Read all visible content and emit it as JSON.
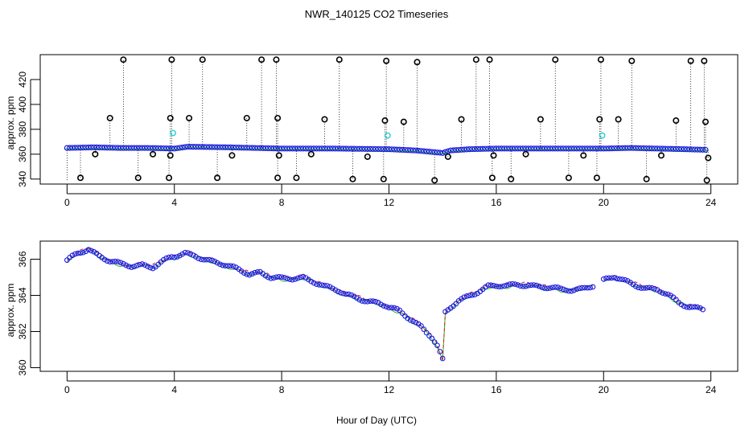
{
  "chart_data": [
    {
      "type": "scatter",
      "title": "NWR_140125  CO2 Timeseries",
      "xlabel": "",
      "ylabel": "approx. ppm",
      "xlim": [
        -1,
        25
      ],
      "ylim": [
        336,
        440
      ],
      "xticks": [
        "0",
        "4",
        "8",
        "12",
        "16",
        "20",
        "24"
      ],
      "yticks": [
        "340",
        "360",
        "380",
        "400",
        "420"
      ],
      "baseline": {
        "x": [
          0,
          1,
          2,
          3,
          4,
          4.5,
          6,
          8,
          10,
          12,
          13,
          13.5,
          14,
          14.3,
          15,
          16,
          18,
          20,
          21,
          22,
          23,
          23.8
        ],
        "y": [
          365,
          365.5,
          365,
          365,
          364.5,
          366,
          365.5,
          364.5,
          364.5,
          364,
          363,
          362,
          361,
          363,
          364,
          364.5,
          364.5,
          364.5,
          365,
          364.5,
          364,
          363.5
        ]
      },
      "outliers_high": [
        {
          "x": 1.6,
          "y": 389
        },
        {
          "x": 2.1,
          "y": 436
        },
        {
          "x": 3.85,
          "y": 389
        },
        {
          "x": 3.9,
          "y": 436
        },
        {
          "x": 4.55,
          "y": 389
        },
        {
          "x": 5.05,
          "y": 436
        },
        {
          "x": 6.7,
          "y": 389
        },
        {
          "x": 7.25,
          "y": 436
        },
        {
          "x": 7.8,
          "y": 436
        },
        {
          "x": 7.85,
          "y": 389
        },
        {
          "x": 9.6,
          "y": 388
        },
        {
          "x": 10.15,
          "y": 436
        },
        {
          "x": 11.85,
          "y": 387
        },
        {
          "x": 11.9,
          "y": 435
        },
        {
          "x": 12.55,
          "y": 386
        },
        {
          "x": 13.05,
          "y": 434
        },
        {
          "x": 14.7,
          "y": 388
        },
        {
          "x": 15.25,
          "y": 436
        },
        {
          "x": 15.75,
          "y": 436
        },
        {
          "x": 17.65,
          "y": 388
        },
        {
          "x": 18.2,
          "y": 436
        },
        {
          "x": 19.85,
          "y": 388
        },
        {
          "x": 19.9,
          "y": 436
        },
        {
          "x": 20.55,
          "y": 388
        },
        {
          "x": 21.05,
          "y": 435
        },
        {
          "x": 22.7,
          "y": 387
        },
        {
          "x": 23.25,
          "y": 435
        },
        {
          "x": 23.75,
          "y": 435
        },
        {
          "x": 23.8,
          "y": 386
        }
      ],
      "outliers_low": [
        {
          "x": 0.5,
          "y": 341
        },
        {
          "x": 1.05,
          "y": 360
        },
        {
          "x": 2.65,
          "y": 341
        },
        {
          "x": 3.2,
          "y": 360
        },
        {
          "x": 3.8,
          "y": 341
        },
        {
          "x": 3.85,
          "y": 359
        },
        {
          "x": 5.6,
          "y": 341
        },
        {
          "x": 6.15,
          "y": 359
        },
        {
          "x": 7.85,
          "y": 341
        },
        {
          "x": 7.9,
          "y": 359
        },
        {
          "x": 8.55,
          "y": 341
        },
        {
          "x": 9.1,
          "y": 360
        },
        {
          "x": 10.65,
          "y": 340
        },
        {
          "x": 11.2,
          "y": 358
        },
        {
          "x": 11.8,
          "y": 340
        },
        {
          "x": 13.7,
          "y": 339
        },
        {
          "x": 14.2,
          "y": 358
        },
        {
          "x": 15.85,
          "y": 341
        },
        {
          "x": 15.9,
          "y": 359
        },
        {
          "x": 16.55,
          "y": 340
        },
        {
          "x": 17.1,
          "y": 360
        },
        {
          "x": 18.7,
          "y": 341
        },
        {
          "x": 19.25,
          "y": 359
        },
        {
          "x": 19.75,
          "y": 341
        },
        {
          "x": 21.6,
          "y": 340
        },
        {
          "x": 22.15,
          "y": 359
        },
        {
          "x": 23.85,
          "y": 339
        },
        {
          "x": 23.9,
          "y": 357
        }
      ],
      "cyan_points": [
        {
          "x": 3.95,
          "y": 377
        },
        {
          "x": 11.95,
          "y": 375
        },
        {
          "x": 19.95,
          "y": 375
        }
      ]
    },
    {
      "type": "scatter",
      "title": "",
      "xlabel": "Hour of Day (UTC)",
      "ylabel": "approx. ppm",
      "xlim": [
        -1,
        25
      ],
      "ylim": [
        359.8,
        367
      ],
      "xticks": [
        "0",
        "4",
        "8",
        "12",
        "16",
        "20",
        "24"
      ],
      "yticks": [
        "360",
        "362",
        "364",
        "366"
      ],
      "gap_x": 19.75,
      "series": {
        "x": [
          0,
          0.4,
          0.8,
          1.2,
          1.6,
          2.0,
          2.4,
          2.8,
          3.2,
          3.6,
          3.9,
          4.0,
          4.4,
          4.8,
          5.2,
          5.6,
          6.0,
          6.4,
          6.8,
          7.2,
          7.6,
          8.0,
          8.4,
          8.8,
          9.2,
          9.6,
          10.0,
          10.4,
          10.8,
          11.2,
          11.6,
          11.9,
          12.0,
          12.4,
          12.8,
          13.2,
          13.6,
          13.8,
          14.0,
          14.1,
          14.3,
          14.6,
          15.0,
          15.4,
          15.7,
          16.0,
          16.4,
          16.8,
          17.2,
          17.6,
          18.0,
          18.4,
          18.8,
          19.2,
          19.7,
          20.0,
          20.4,
          20.8,
          21.2,
          21.6,
          22.0,
          22.4,
          22.8,
          23.2,
          23.6,
          23.8
        ],
        "y": [
          365.9,
          366.3,
          366.6,
          366.2,
          365.9,
          365.7,
          365.6,
          365.7,
          365.6,
          365.9,
          366.1,
          366.1,
          366.3,
          366.2,
          366.0,
          365.8,
          365.6,
          365.4,
          365.2,
          365.3,
          365.0,
          364.9,
          364.9,
          365.0,
          364.8,
          364.5,
          364.3,
          364.0,
          363.9,
          363.7,
          363.6,
          363.4,
          363.3,
          363.1,
          362.7,
          362.3,
          361.7,
          361.2,
          360.4,
          363.0,
          363.3,
          363.7,
          364.0,
          364.3,
          364.5,
          364.5,
          364.5,
          364.6,
          364.6,
          364.5,
          364.4,
          364.3,
          364.3,
          364.4,
          364.6,
          364.8,
          365.0,
          364.8,
          364.6,
          364.4,
          364.3,
          364.0,
          363.6,
          363.4,
          363.3,
          363.2
        ]
      }
    }
  ]
}
